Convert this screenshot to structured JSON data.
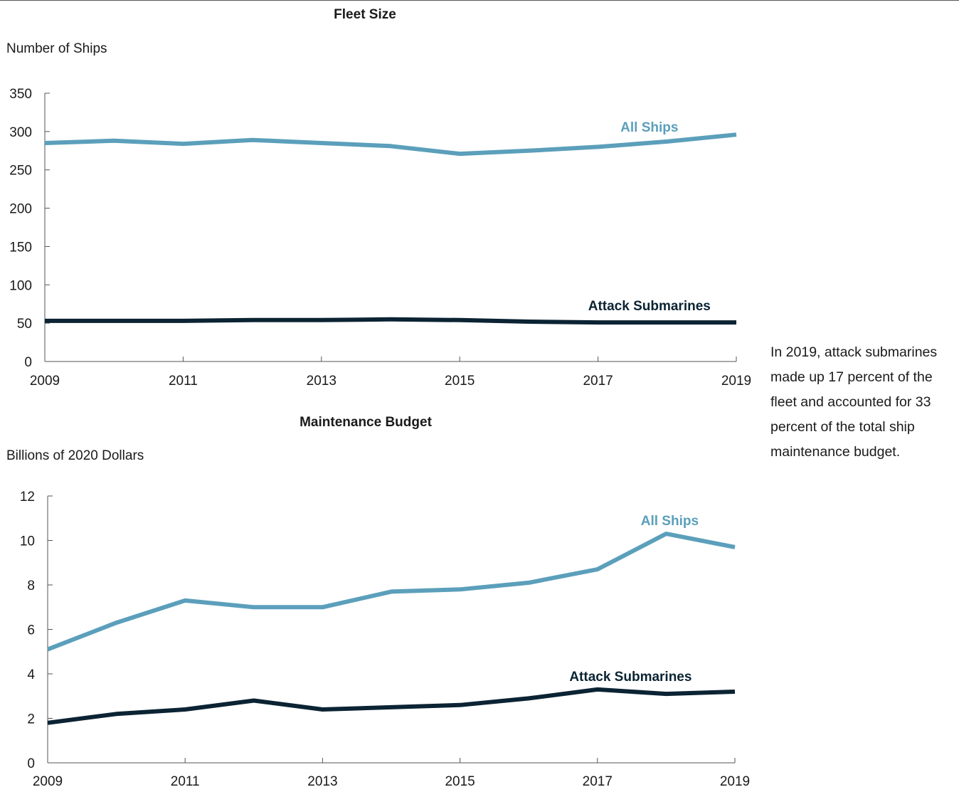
{
  "note": "In 2019, attack submarines made up 17 percent of the fleet and accounted for 33 percent of the total ship maintenance budget.",
  "colors": {
    "all_ships": "#5b9fbb",
    "attack_submarines": "#0b2333",
    "axis": "#555555",
    "text": "#1a1a1a"
  },
  "chart_data": [
    {
      "type": "line",
      "title": "Fleet Size",
      "ylabel": "Number of Ships",
      "xlabel": "",
      "x": [
        2009,
        2010,
        2011,
        2012,
        2013,
        2014,
        2015,
        2016,
        2017,
        2018,
        2019
      ],
      "xticks": [
        "2009",
        "2011",
        "2013",
        "2015",
        "2017",
        "2019"
      ],
      "yticks": [
        "0",
        "50",
        "100",
        "150",
        "200",
        "250",
        "300",
        "350"
      ],
      "ylim": [
        0,
        350
      ],
      "grid": false,
      "series": [
        {
          "name": "All Ships",
          "color": "#5b9fbb",
          "values": [
            285,
            288,
            284,
            289,
            285,
            281,
            271,
            275,
            280,
            287,
            296
          ]
        },
        {
          "name": "Attack Submarines",
          "color": "#0b2333",
          "values": [
            53,
            53,
            53,
            54,
            54,
            55,
            54,
            52,
            51,
            51,
            51
          ]
        }
      ]
    },
    {
      "type": "line",
      "title": "Maintenance Budget",
      "ylabel": "Billions of 2020 Dollars",
      "xlabel": "",
      "x": [
        2009,
        2010,
        2011,
        2012,
        2013,
        2014,
        2015,
        2016,
        2017,
        2018,
        2019
      ],
      "xticks": [
        "2009",
        "2011",
        "2013",
        "2015",
        "2017",
        "2019"
      ],
      "yticks": [
        "0",
        "2",
        "4",
        "6",
        "8",
        "10",
        "12"
      ],
      "ylim": [
        0,
        12
      ],
      "grid": false,
      "series": [
        {
          "name": "All Ships",
          "color": "#5b9fbb",
          "values": [
            5.1,
            6.3,
            7.3,
            7.0,
            7.0,
            7.7,
            7.8,
            8.1,
            8.7,
            10.3,
            9.7
          ]
        },
        {
          "name": "Attack Submarines",
          "color": "#0b2333",
          "values": [
            1.8,
            2.2,
            2.4,
            2.8,
            2.4,
            2.5,
            2.6,
            2.9,
            3.3,
            3.1,
            3.2
          ]
        }
      ]
    }
  ]
}
